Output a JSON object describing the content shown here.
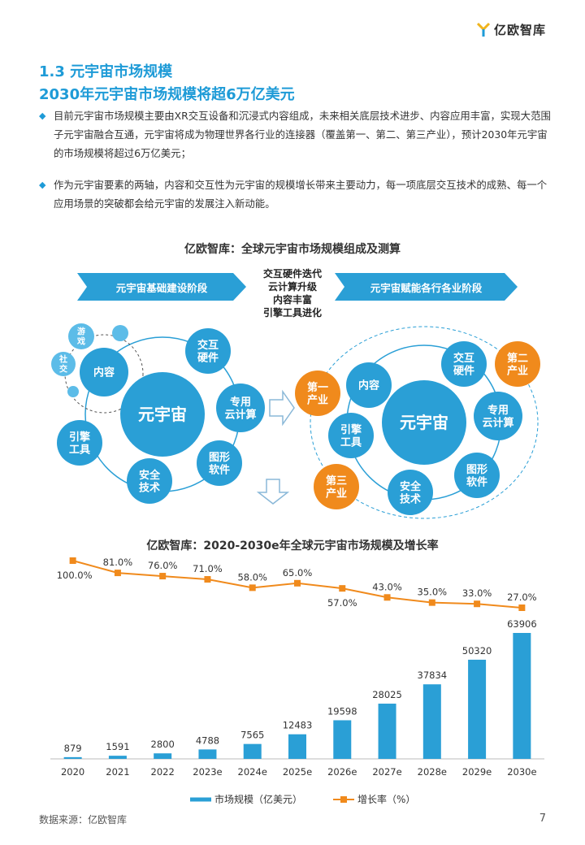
{
  "brand": {
    "name": "亿欧智库"
  },
  "section": {
    "title": "1.3 元宇宙市场规模",
    "subtitle": "2030年元宇宙市场规模将超6万亿美元"
  },
  "bullets": [
    "目前元宇宙市场规模主要由XR交互设备和沉浸式内容组成，未来相关底层技术进步、内容应用丰富，实现大范围子元宇宙融合互通，元宇宙将成为物理世界各行业的连接器（覆盖第一、第二、第三产业），预计2030年元宇宙的市场规模将超过6万亿美元；",
    "作为元宇宙要素的两轴，内容和交互性为元宇宙的规模增长带来主要动力，每一项底层交互技术的成熟、每一个应用场景的突破都会给元宇宙的发展注入新动能。"
  ],
  "diagram": {
    "title": "亿欧智库：全球元宇宙市场规模组成及测算",
    "stage_left": "元宇宙基础建设阶段",
    "stage_right": "元宇宙赋能各行各业阶段",
    "drivers": [
      "交互硬件迭代",
      "云计算升级",
      "内容丰富",
      "引擎工具进化"
    ],
    "left": {
      "center": "元宇宙",
      "nodes": [
        "交互\n硬件",
        "专用\n云计算",
        "图形\n软件",
        "安全\n技术",
        "引擎\n工具",
        "内容"
      ],
      "small_nodes": [
        "游\n戏",
        "社\n交"
      ]
    },
    "right": {
      "center": "元宇宙",
      "nodes": [
        "交互\n硬件",
        "专用\n云计算",
        "图形\n软件",
        "安全\n技术",
        "引擎\n工具",
        "内容"
      ],
      "industries": [
        "第一\n产业",
        "第二\n产业",
        "第三\n产业"
      ]
    },
    "colors": {
      "blue": "#2a9fd6",
      "orange": "#f08a1c",
      "light": "#5cbce8"
    }
  },
  "chart_data": {
    "type": "bar",
    "title": "亿欧智库：2020-2030e年全球元宇宙市场规模及增长率",
    "categories": [
      "2020",
      "2021",
      "2022",
      "2023e",
      "2024e",
      "2025e",
      "2026e",
      "2027e",
      "2028e",
      "2029e",
      "2030e"
    ],
    "series": [
      {
        "name": "市场规模（亿美元）",
        "type": "bar",
        "values": [
          879,
          1591,
          2800,
          4788,
          7565,
          12483,
          19598,
          28025,
          37834,
          50320,
          63906
        ],
        "color": "#2a9fd6"
      },
      {
        "name": "增长率（%）",
        "type": "line",
        "values": [
          100.0,
          81.0,
          76.0,
          71.0,
          58.0,
          65.0,
          57.0,
          43.0,
          35.0,
          33.0,
          27.0
        ],
        "color": "#f08a1c"
      }
    ],
    "line_labels": [
      "100.0%",
      "81.0%",
      "76.0%",
      "71.0%",
      "58.0%",
      "65.0%",
      "57.0%",
      "43.0%",
      "35.0%",
      "33.0%",
      "27.0%"
    ],
    "legend": "bottom-center",
    "grid": false
  },
  "footer": {
    "source": "数据来源：亿欧智库",
    "page": "7"
  }
}
